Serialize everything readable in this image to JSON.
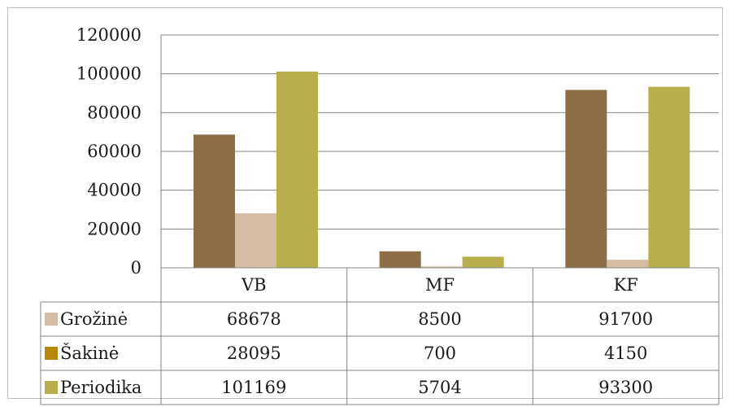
{
  "chart_data": {
    "type": "bar",
    "categories": [
      "VB",
      "MF",
      "KF"
    ],
    "series": [
      {
        "name": "Grožinė",
        "values": [
          68678,
          8500,
          91700
        ],
        "color": "#8c6d46"
      },
      {
        "name": "Šakinė",
        "values": [
          28095,
          700,
          4150
        ],
        "color": "#d4bda2"
      },
      {
        "name": "Periodika",
        "values": [
          101169,
          5704,
          93300
        ],
        "color": "#b8ae4e"
      }
    ],
    "legend_swatch_colors": [
      "#d4bda2",
      "#b8860b",
      "#b8ae4e"
    ],
    "ylim": [
      0,
      120000
    ],
    "yticks": [
      "120000",
      "100000",
      "80000",
      "60000",
      "40000",
      "20000",
      "0"
    ],
    "grid": true,
    "legend": "data-table-rows",
    "data_table": [
      [
        "68678",
        "8500",
        "91700"
      ],
      [
        "28095",
        "700",
        "4150"
      ],
      [
        "101169",
        "5704",
        "93300"
      ]
    ]
  }
}
